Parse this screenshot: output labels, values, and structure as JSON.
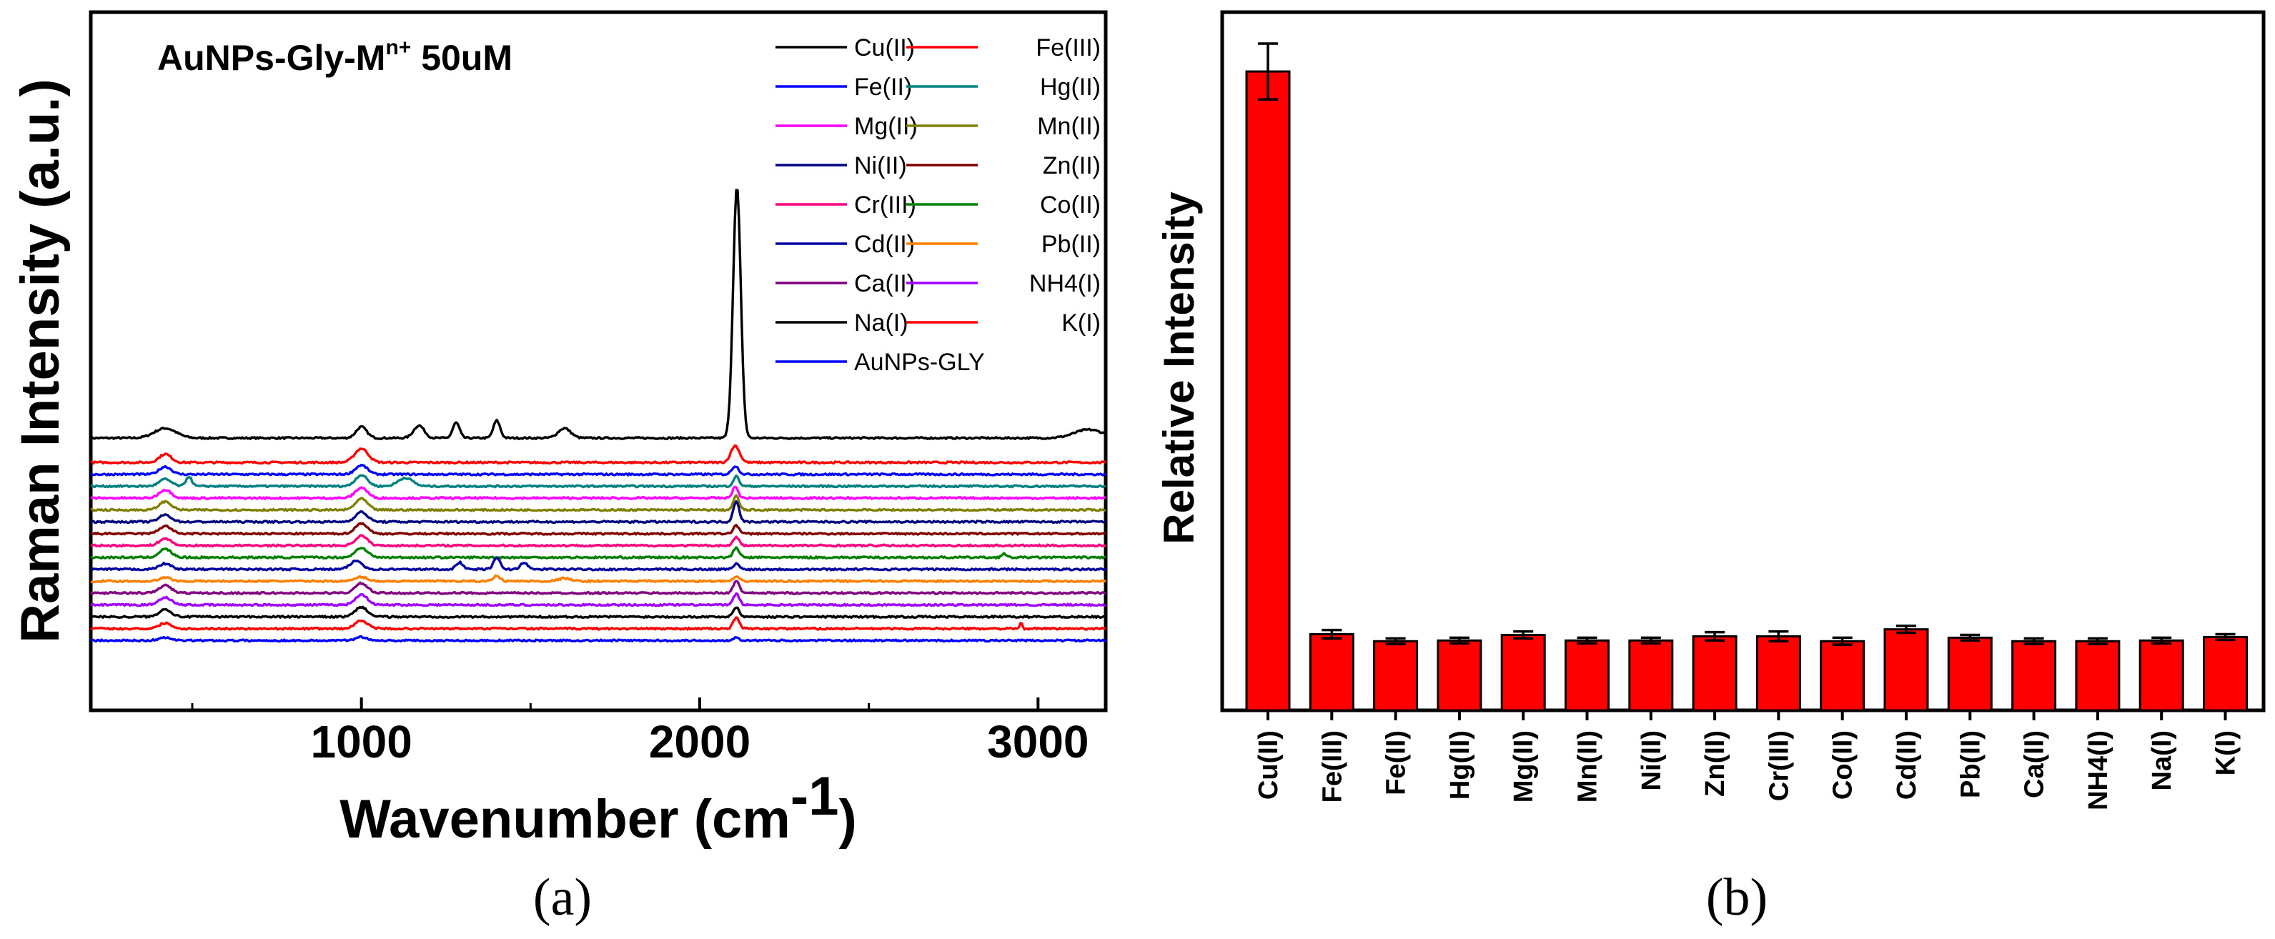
{
  "chart_data": [
    {
      "type": "line",
      "panel_label": "(a)",
      "xlabel": "Wavenumber (cm",
      "xlabel_sup": "-1",
      "xlabel_end": ")",
      "ylabel": "Raman Intensity (a.u.)",
      "annotation": {
        "main": "AuNPs-Gly-M",
        "sup": "n+",
        "tail": " 50uM"
      },
      "xlim": [
        200,
        3200
      ],
      "xticks": [
        1000,
        2000,
        3000
      ],
      "xtick_labels": [
        "1000",
        "2000",
        "3000"
      ],
      "grid": false,
      "legend_position": "top-right",
      "series": [
        {
          "name": "Cu(II)",
          "color": "#000000",
          "offset": 0.39,
          "peaks": [
            [
              420,
              0.014,
              45
            ],
            [
              1000,
              0.016,
              22
            ],
            [
              1170,
              0.018,
              22
            ],
            [
              1280,
              0.022,
              14
            ],
            [
              1400,
              0.025,
              14
            ],
            [
              1600,
              0.014,
              26
            ],
            [
              2110,
              0.36,
              16
            ],
            [
              3150,
              0.012,
              60
            ]
          ]
        },
        {
          "name": "Fe(III)",
          "color": "#ff0000",
          "offset": 0.355,
          "peaks": [
            [
              420,
              0.012,
              25
            ],
            [
              1000,
              0.02,
              28
            ],
            [
              2105,
              0.024,
              18
            ]
          ]
        },
        {
          "name": "Fe(II)",
          "color": "#0000ff",
          "offset": 0.338,
          "peaks": [
            [
              420,
              0.011,
              25
            ],
            [
              1000,
              0.013,
              25
            ],
            [
              2105,
              0.012,
              14
            ]
          ]
        },
        {
          "name": "Hg(II)",
          "color": "#008080",
          "offset": 0.321,
          "peaks": [
            [
              420,
              0.01,
              25
            ],
            [
              490,
              0.014,
              12
            ],
            [
              1000,
              0.016,
              25
            ],
            [
              1130,
              0.012,
              30
            ],
            [
              2108,
              0.014,
              12
            ]
          ]
        },
        {
          "name": "Mg(II)",
          "color": "#ff00ff",
          "offset": 0.304,
          "peaks": [
            [
              420,
              0.012,
              25
            ],
            [
              1000,
              0.015,
              25
            ],
            [
              2105,
              0.016,
              12
            ]
          ]
        },
        {
          "name": "Mn(II)",
          "color": "#808000",
          "offset": 0.287,
          "peaks": [
            [
              420,
              0.012,
              25
            ],
            [
              1000,
              0.016,
              25
            ],
            [
              2108,
              0.02,
              12
            ]
          ]
        },
        {
          "name": "Ni(II)",
          "color": "#000080",
          "offset": 0.27,
          "peaks": [
            [
              420,
              0.01,
              25
            ],
            [
              1000,
              0.014,
              25
            ],
            [
              2108,
              0.03,
              12
            ]
          ]
        },
        {
          "name": "Zn(II)",
          "color": "#800000",
          "offset": 0.253,
          "peaks": [
            [
              420,
              0.011,
              25
            ],
            [
              1000,
              0.015,
              25
            ],
            [
              2108,
              0.012,
              12
            ]
          ]
        },
        {
          "name": "Cr(III)",
          "color": "#ff0080",
          "offset": 0.236,
          "peaks": [
            [
              420,
              0.01,
              25
            ],
            [
              1000,
              0.014,
              25
            ],
            [
              2108,
              0.012,
              12
            ]
          ]
        },
        {
          "name": "Co(II)",
          "color": "#008000",
          "offset": 0.219,
          "peaks": [
            [
              420,
              0.012,
              25
            ],
            [
              1000,
              0.014,
              25
            ],
            [
              2108,
              0.014,
              12
            ],
            [
              2900,
              0.005,
              10
            ]
          ]
        },
        {
          "name": "Cd(II)",
          "color": "#0000a0",
          "offset": 0.202,
          "peaks": [
            [
              420,
              0.008,
              25
            ],
            [
              985,
              0.012,
              25
            ],
            [
              1290,
              0.01,
              14
            ],
            [
              1400,
              0.016,
              14
            ],
            [
              1480,
              0.01,
              14
            ],
            [
              2108,
              0.008,
              12
            ]
          ]
        },
        {
          "name": "Pb(II)",
          "color": "#ff8000",
          "offset": 0.185,
          "peaks": [
            [
              420,
              0.005,
              25
            ],
            [
              1000,
              0.006,
              25
            ],
            [
              1400,
              0.008,
              14
            ],
            [
              1600,
              0.004,
              25
            ],
            [
              2108,
              0.006,
              12
            ]
          ]
        },
        {
          "name": "Ca(II)",
          "color": "#800080",
          "offset": 0.168,
          "peaks": [
            [
              420,
              0.011,
              25
            ],
            [
              1000,
              0.014,
              25
            ],
            [
              2108,
              0.018,
              12
            ]
          ]
        },
        {
          "name": "NH4(I)",
          "color": "#a000ff",
          "offset": 0.151,
          "peaks": [
            [
              420,
              0.011,
              25
            ],
            [
              1000,
              0.015,
              25
            ],
            [
              2108,
              0.016,
              12
            ]
          ]
        },
        {
          "name": "Na(I)",
          "color": "#000000",
          "offset": 0.134,
          "peaks": [
            [
              420,
              0.011,
              25
            ],
            [
              1000,
              0.014,
              25
            ],
            [
              2108,
              0.014,
              12
            ]
          ]
        },
        {
          "name": "K(I)",
          "color": "#ff0000",
          "offset": 0.117,
          "peaks": [
            [
              420,
              0.008,
              25
            ],
            [
              1000,
              0.012,
              25
            ],
            [
              2108,
              0.016,
              12
            ],
            [
              2950,
              0.01,
              4
            ]
          ]
        },
        {
          "name": "AuNPs-GLY",
          "color": "#0000ff",
          "offset": 0.1,
          "peaks": [
            [
              420,
              0.004,
              25
            ],
            [
              1000,
              0.005,
              25
            ],
            [
              2108,
              0.005,
              12
            ]
          ]
        }
      ]
    },
    {
      "type": "bar",
      "panel_label": "(b)",
      "xlabel": "",
      "ylabel": "Relative Intensity",
      "ylim": [
        0,
        100
      ],
      "bar_color": "#ff0000",
      "categories": [
        "Cu(II)",
        "Fe(III)",
        "Fe(II)",
        "Hg(II)",
        "Mg(II)",
        "Mn(II)",
        "Ni(II)",
        "Zn(II)",
        "Cr(III)",
        "Co(II)",
        "Cd(II)",
        "Pb(II)",
        "Ca(II)",
        "NH4(I)",
        "Na(I)",
        "K(I)"
      ],
      "values": [
        91.5,
        10.9,
        9.9,
        10.0,
        10.8,
        10.0,
        10.0,
        10.6,
        10.6,
        9.9,
        11.6,
        10.4,
        9.9,
        9.9,
        10.0,
        10.5
      ],
      "errors": [
        4.0,
        0.6,
        0.4,
        0.4,
        0.5,
        0.4,
        0.4,
        0.6,
        0.7,
        0.5,
        0.5,
        0.4,
        0.4,
        0.4,
        0.4,
        0.4
      ]
    }
  ]
}
